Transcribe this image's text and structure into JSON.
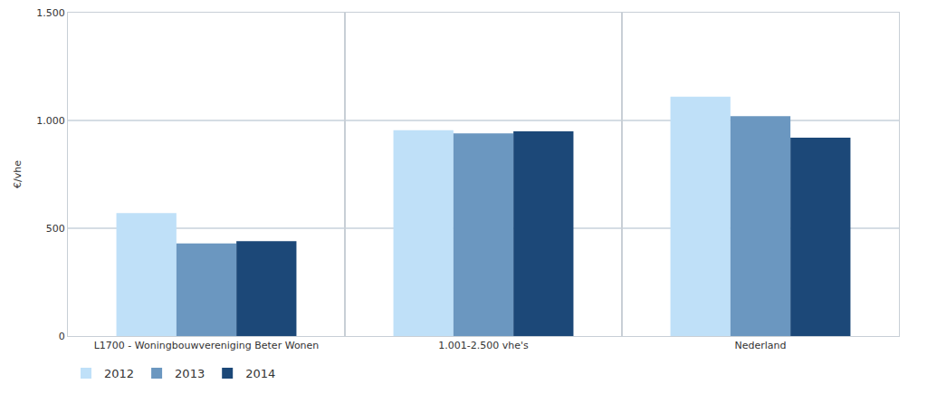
{
  "chart_data": {
    "type": "bar",
    "y_label": "€/vhe",
    "categories": [
      "L1700 - Woningbouwvereniging Beter Wonen",
      "1.001-2.500 vhe's",
      "Nederland"
    ],
    "series": [
      {
        "name": "2012",
        "color": "#bfe0f8",
        "values": [
          570,
          955,
          1110
        ]
      },
      {
        "name": "2013",
        "color": "#6b97c0",
        "values": [
          430,
          940,
          1020
        ]
      },
      {
        "name": "2014",
        "color": "#1c4878",
        "values": [
          440,
          950,
          920
        ]
      }
    ],
    "ylim": [
      0,
      1500
    ],
    "yticks": [
      0,
      500,
      {
        "value": 1000,
        "label": "1.000"
      },
      {
        "value": 1500,
        "label": "1.500"
      }
    ],
    "grid": true,
    "legend": "bottom left"
  }
}
